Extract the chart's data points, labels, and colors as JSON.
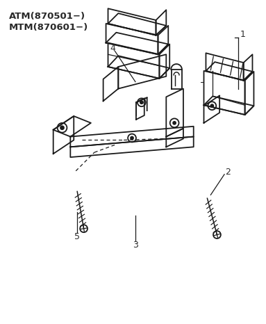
{
  "title_line1": "ATM(870501−)",
  "title_line2": "MTM(870601−)",
  "bg_color": "#ffffff",
  "line_color": "#1a1a1a",
  "label_color": "#2a2a2a",
  "figsize": [
    3.83,
    4.66
  ],
  "dpi": 100
}
